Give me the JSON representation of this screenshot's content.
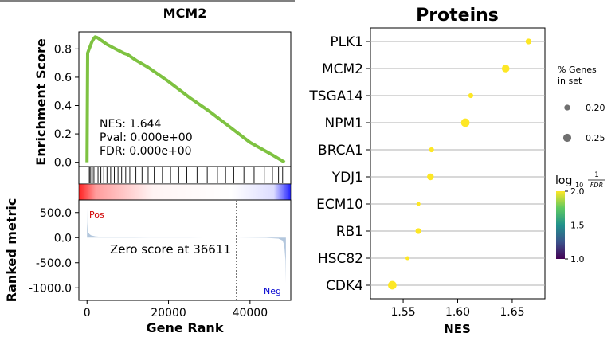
{
  "chart_data": [
    {
      "type": "line",
      "title": "MCM2",
      "ylabel": "Enrichment Score",
      "ylim": [
        -0.03,
        0.92
      ],
      "yticks": [
        "0.0",
        "0.2",
        "0.4",
        "0.6",
        "0.8"
      ],
      "xlim": [
        -2000,
        50000
      ],
      "x": [
        0,
        150,
        400,
        800,
        1200,
        1600,
        2000,
        2500,
        3000,
        4000,
        5000,
        7000,
        9000,
        10000,
        12000,
        15000,
        20000,
        25000,
        30000,
        35000,
        40000,
        45000,
        48500
      ],
      "y": [
        0.0,
        0.77,
        0.79,
        0.82,
        0.85,
        0.87,
        0.885,
        0.88,
        0.87,
        0.85,
        0.83,
        0.8,
        0.77,
        0.76,
        0.72,
        0.67,
        0.57,
        0.46,
        0.36,
        0.25,
        0.14,
        0.06,
        0.0
      ],
      "series_color": "#7ec241",
      "stats": [
        "NES: 1.644",
        "Pval: 0.000e+00",
        "FDR: 0.000e+00"
      ],
      "hits": [
        300,
        600,
        900,
        1300,
        1700,
        2200,
        2700,
        3400,
        4100,
        4900,
        5800,
        6700,
        7600,
        8500,
        9500,
        10500,
        12000,
        13500,
        15000,
        16500,
        18500,
        20500,
        22500,
        24500,
        27000,
        29500,
        32000,
        34000,
        36000,
        38500,
        41000,
        43500,
        45500,
        47000,
        48000
      ]
    },
    {
      "type": "area",
      "ylabel": "Ranked metric",
      "xlabel": "Gene Rank",
      "ylim": [
        -1250,
        750
      ],
      "yticks": [
        "500.0",
        "0.0",
        "-500.0",
        "-1000.0"
      ],
      "ytick_values": [
        500,
        0,
        -500,
        -1000
      ],
      "xticks": [
        "0",
        "20000",
        "40000"
      ],
      "xtick_values": [
        0,
        20000,
        40000
      ],
      "xlim": [
        -2000,
        50000
      ],
      "zero_cross": 36611,
      "zero_label": "Zero score at 36611",
      "pos_label": "Pos",
      "neg_label": "Neg",
      "x": [
        0,
        50,
        150,
        300,
        600,
        1000,
        2000,
        4000,
        8000,
        15000,
        25000,
        36611,
        44000,
        47000,
        48000,
        48400,
        48700,
        48800
      ],
      "y": [
        600,
        300,
        170,
        110,
        70,
        45,
        25,
        12,
        6,
        2,
        1,
        0,
        -5,
        -20,
        -60,
        -150,
        -450,
        -900
      ],
      "fill_color": "#b3c7dd"
    },
    {
      "type": "scatter",
      "title": "Proteins",
      "xlabel": "NES",
      "xlim": [
        1.52,
        1.68
      ],
      "xticks": [
        "1.55",
        "1.60",
        "1.65"
      ],
      "xtick_values": [
        1.55,
        1.6,
        1.65
      ],
      "categories": [
        "PLK1",
        "MCM2",
        "TSGA14",
        "NPM1",
        "BRCA1",
        "YDJ1",
        "ECM10",
        "RB1",
        "HSC82",
        "CDK4"
      ],
      "x": [
        1.665,
        1.644,
        1.612,
        1.607,
        1.576,
        1.575,
        1.564,
        1.564,
        1.554,
        1.54
      ],
      "size_percent": [
        0.2,
        0.24,
        0.18,
        0.26,
        0.18,
        0.22,
        0.16,
        0.2,
        0.16,
        0.26
      ],
      "neglog10_fdr": [
        2.0,
        2.0,
        2.0,
        2.0,
        2.0,
        2.0,
        2.0,
        2.0,
        2.0,
        2.0
      ],
      "size_legend_title": [
        "% Genes",
        "in set"
      ],
      "size_legend_values": [
        "0.20",
        "0.25"
      ],
      "size_legend_numbers": [
        0.2,
        0.25
      ],
      "colorbar_ticks": [
        "2.0",
        "1.5",
        "1.0"
      ],
      "colorbar_tick_values": [
        2.0,
        1.5,
        1.0
      ],
      "colorbar_range": [
        1.0,
        2.0
      ],
      "colorbar_label_main": "log",
      "colorbar_label_sub": "10",
      "colorbar_label_num": "1",
      "colorbar_label_den": "FDR",
      "grid": true
    }
  ]
}
